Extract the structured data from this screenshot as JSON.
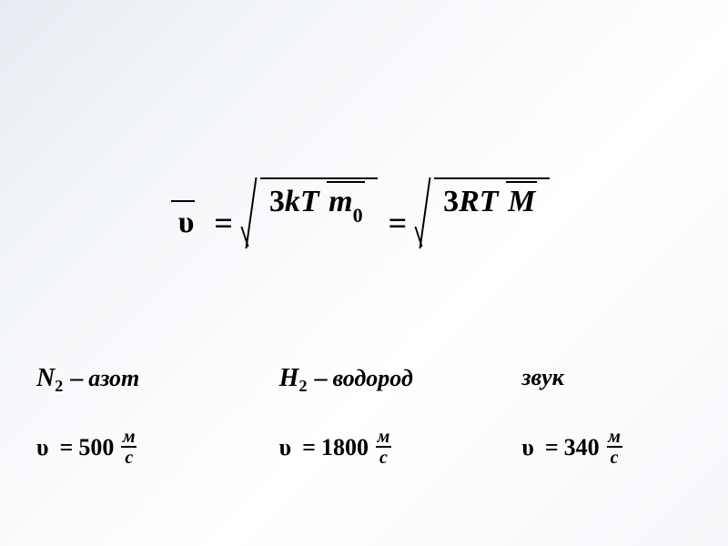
{
  "formula": {
    "nu_glyph": "υ",
    "eq": "=",
    "root1": {
      "numerator_three": "3",
      "numerator_rest": "kT",
      "denominator_sym": "m",
      "denominator_sub": "0"
    },
    "root2": {
      "numerator_three": "3",
      "numerator_rest": "RT",
      "denominator_sym": "M",
      "denominator_sub": ""
    }
  },
  "unit": {
    "num": "м",
    "den": "с"
  },
  "cases": {
    "nitrogen": {
      "sym": "N",
      "sub": "2",
      "dash": "–",
      "word": "азот",
      "nu_glyph": "υ",
      "eq": "=",
      "value": "500"
    },
    "hydrogen": {
      "sym": "H",
      "sub": "2",
      "dash": "–",
      "word": "водород",
      "nu_glyph": "υ",
      "eq": "=",
      "value": "1800"
    },
    "sound": {
      "word": "звук",
      "nu_glyph": "υ",
      "eq": "=",
      "value": "340"
    }
  },
  "style": {
    "text_color": "#000000",
    "background_gradient": [
      "#e8ecf2",
      "#f5f7fa",
      "#ffffff",
      "#f5f7fa"
    ],
    "main_formula_font_size": 34,
    "case_label_font_size": 26,
    "case_value_font_size": 26,
    "unit_font_size": 20,
    "font_family": "Times New Roman"
  }
}
